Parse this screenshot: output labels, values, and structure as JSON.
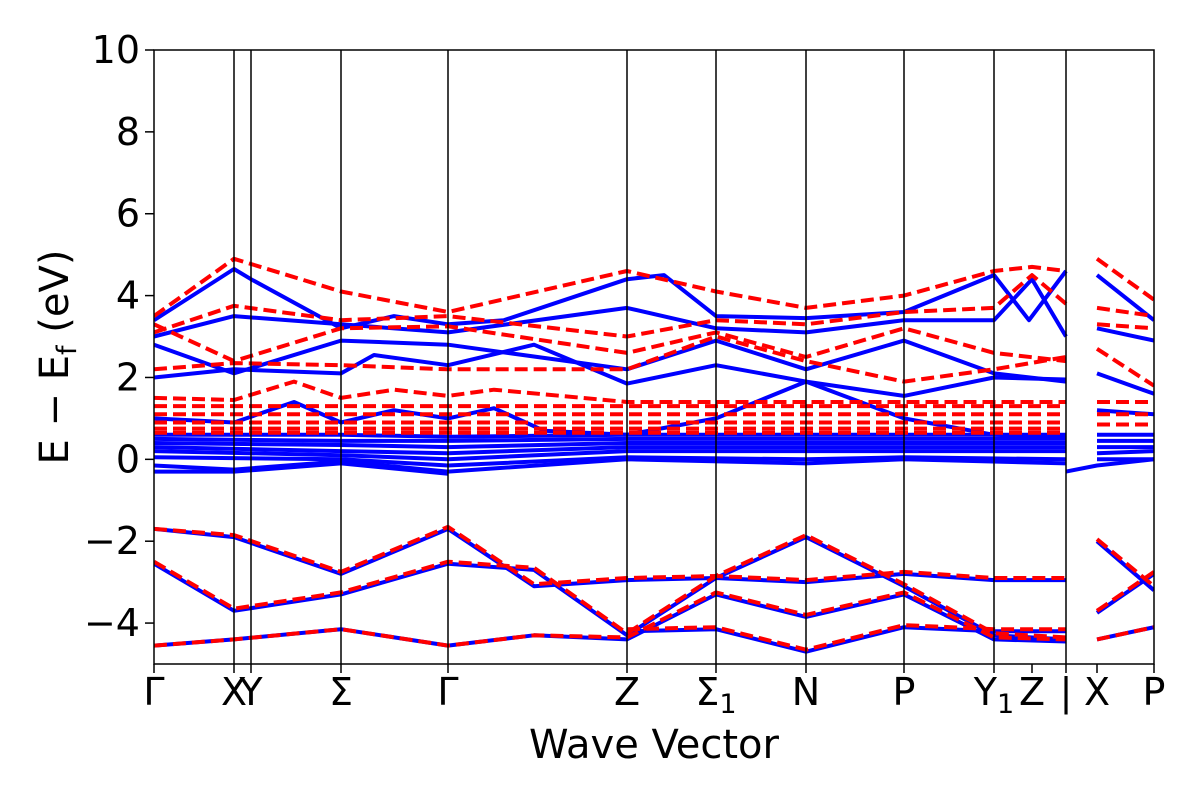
{
  "chart_data": {
    "type": "line",
    "title": "",
    "xlabel": "Wave Vector",
    "ylabel": "E − E_f (eV)",
    "ylabel_main": "E − E",
    "ylabel_sub": "f",
    "ylabel_unit": " (eV)",
    "ylim": [
      -5,
      10
    ],
    "yticks": [
      -4,
      -2,
      0,
      2,
      4,
      6,
      8,
      10
    ],
    "ytick_labels": [
      "−4",
      "−2",
      "0",
      "2",
      "4",
      "6",
      "8",
      "10"
    ],
    "xlim": [
      0,
      10
    ],
    "grid": false,
    "legend": "none",
    "colors": {
      "up": "#0000ff",
      "down": "#ff0000",
      "axis": "#000000"
    },
    "kpoints": [
      {
        "x": 0.0,
        "label": "Γ",
        "sub": ""
      },
      {
        "x": 0.8,
        "label": "X",
        "sub": ""
      },
      {
        "x": 0.97,
        "label": "Y",
        "sub": ""
      },
      {
        "x": 1.87,
        "label": "Σ",
        "sub": ""
      },
      {
        "x": 2.94,
        "label": "Γ",
        "sub": ""
      },
      {
        "x": 4.73,
        "label": "Z",
        "sub": ""
      },
      {
        "x": 5.62,
        "label": "Σ",
        "sub": "1"
      },
      {
        "x": 6.52,
        "label": "N",
        "sub": ""
      },
      {
        "x": 7.5,
        "label": "P",
        "sub": ""
      },
      {
        "x": 8.4,
        "label": "Y",
        "sub": "1"
      },
      {
        "x": 8.78,
        "label": "Z",
        "sub": ""
      },
      {
        "x": 9.12,
        "label": "|",
        "sub": ""
      },
      {
        "x": 9.43,
        "label": "X",
        "sub": ""
      },
      {
        "x": 10.0,
        "label": "P",
        "sub": ""
      }
    ],
    "vlines": [
      0.8,
      0.97,
      1.87,
      2.94,
      4.73,
      5.62,
      6.52,
      7.5,
      8.4,
      9.12
    ],
    "series": [
      {
        "spin": "up",
        "style": "solid",
        "x": [
          0,
          0.8,
          0.97,
          1.87,
          2.4,
          2.94,
          3.5,
          4.73,
          5.1,
          5.62,
          6.52,
          7.5,
          8.4,
          8.75,
          9.12
        ],
        "y": [
          3.4,
          4.65,
          4.4,
          3.2,
          3.5,
          3.3,
          3.4,
          4.4,
          4.5,
          3.5,
          3.45,
          3.6,
          4.5,
          3.4,
          4.6
        ]
      },
      {
        "spin": "up",
        "style": "solid",
        "x": [
          0,
          0.8,
          1.87,
          2.94,
          4.73,
          5.62,
          6.52,
          7.5,
          8.4,
          8.78,
          9.12
        ],
        "y": [
          3.0,
          3.5,
          3.3,
          3.1,
          3.7,
          3.2,
          3.1,
          3.4,
          3.4,
          4.4,
          3.0
        ]
      },
      {
        "spin": "up",
        "style": "solid",
        "x": [
          9.43,
          10.0
        ],
        "y": [
          4.5,
          3.4
        ]
      },
      {
        "spin": "up",
        "style": "solid",
        "x": [
          0,
          0.8,
          1.87,
          2.94,
          4.73,
          5.62,
          6.52,
          7.5,
          8.4,
          9.12
        ],
        "y": [
          2.8,
          2.1,
          2.9,
          2.8,
          2.2,
          2.9,
          2.2,
          2.9,
          2.1,
          1.9
        ]
      },
      {
        "spin": "up",
        "style": "solid",
        "x": [
          9.43,
          10.0
        ],
        "y": [
          3.2,
          2.9
        ]
      },
      {
        "spin": "up",
        "style": "solid",
        "x": [
          0,
          0.8,
          1.87,
          2.2,
          2.94,
          3.8,
          4.73,
          5.62,
          6.52,
          7.5,
          8.4,
          9.12
        ],
        "y": [
          2.0,
          2.2,
          2.1,
          2.55,
          2.3,
          2.8,
          1.85,
          2.3,
          1.9,
          1.55,
          2.0,
          1.95
        ]
      },
      {
        "spin": "up",
        "style": "solid",
        "x": [
          9.43,
          10.0
        ],
        "y": [
          2.1,
          1.6
        ]
      },
      {
        "spin": "up",
        "style": "solid",
        "x": [
          0,
          0.8,
          1.4,
          1.87,
          2.4,
          2.94,
          3.4,
          3.9,
          4.73,
          5.62,
          6.52,
          7.5,
          8.4,
          9.12
        ],
        "y": [
          1.0,
          0.9,
          1.4,
          0.9,
          1.2,
          1.0,
          1.25,
          0.7,
          0.6,
          1.0,
          1.9,
          1.0,
          0.6,
          0.55
        ]
      },
      {
        "spin": "up",
        "style": "solid",
        "x": [
          9.43,
          10.0
        ],
        "y": [
          1.2,
          1.1
        ]
      },
      {
        "spin": "up",
        "style": "solid",
        "x": [
          0,
          1.87,
          2.94,
          4.73,
          6.52,
          7.5,
          9.12
        ],
        "y": [
          0.6,
          0.6,
          0.55,
          0.6,
          0.6,
          0.6,
          0.6
        ]
      },
      {
        "spin": "up",
        "style": "solid",
        "x": [
          0,
          1.87,
          2.94,
          4.73,
          6.52,
          7.5,
          9.12
        ],
        "y": [
          0.5,
          0.45,
          0.45,
          0.5,
          0.5,
          0.5,
          0.5
        ]
      },
      {
        "spin": "up",
        "style": "solid",
        "x": [
          0,
          1.87,
          2.94,
          4.73,
          6.52,
          7.5,
          9.12
        ],
        "y": [
          0.4,
          0.35,
          0.3,
          0.4,
          0.4,
          0.4,
          0.4
        ]
      },
      {
        "spin": "up",
        "style": "solid",
        "x": [
          0,
          1.87,
          2.94,
          4.73,
          6.52,
          7.5,
          9.12
        ],
        "y": [
          0.3,
          0.2,
          0.15,
          0.3,
          0.3,
          0.3,
          0.3
        ]
      },
      {
        "spin": "up",
        "style": "solid",
        "x": [
          0,
          1.87,
          2.94,
          4.73,
          6.52,
          7.5,
          9.12
        ],
        "y": [
          0.2,
          0.1,
          0.0,
          0.2,
          0.2,
          0.2,
          0.2
        ]
      },
      {
        "spin": "up",
        "style": "solid",
        "x": [
          0,
          1.87,
          2.94,
          4.73,
          6.52,
          7.5,
          9.12
        ],
        "y": [
          0.05,
          0.0,
          -0.15,
          0.05,
          0.0,
          0.05,
          0.0
        ]
      },
      {
        "spin": "up",
        "style": "solid",
        "x": [
          0,
          0.8,
          1.87,
          2.94,
          4.73,
          6.52,
          7.5,
          9.12
        ],
        "y": [
          -0.15,
          -0.25,
          -0.05,
          -0.3,
          0.0,
          -0.1,
          0.0,
          -0.1
        ]
      },
      {
        "spin": "up",
        "style": "solid",
        "x": [
          0,
          0.8,
          1.87,
          2.94
        ],
        "y": [
          -0.3,
          -0.3,
          -0.1,
          -0.35
        ]
      },
      {
        "spin": "up",
        "style": "solid",
        "x": [
          9.43,
          10.0
        ],
        "y": [
          0.6,
          0.6
        ]
      },
      {
        "spin": "up",
        "style": "solid",
        "x": [
          9.43,
          10.0
        ],
        "y": [
          0.45,
          0.45
        ]
      },
      {
        "spin": "up",
        "style": "solid",
        "x": [
          9.43,
          10.0
        ],
        "y": [
          0.3,
          0.3
        ]
      },
      {
        "spin": "up",
        "style": "solid",
        "x": [
          9.43,
          10.0
        ],
        "y": [
          0.15,
          0.2
        ]
      },
      {
        "spin": "up",
        "style": "solid",
        "x": [
          9.43,
          10.0
        ],
        "y": [
          0.0,
          0.0
        ]
      },
      {
        "spin": "up",
        "style": "solid",
        "x": [
          9.12,
          9.43,
          10.0
        ],
        "y": [
          -0.3,
          -0.15,
          0.0
        ]
      },
      {
        "spin": "up",
        "style": "solid",
        "x": [
          0,
          0.8,
          1.87,
          2.94,
          3.8,
          4.73,
          5.62,
          6.52,
          7.5,
          8.4,
          9.12
        ],
        "y": [
          -1.7,
          -1.9,
          -2.8,
          -1.7,
          -3.1,
          -2.95,
          -2.9,
          -3.0,
          -2.8,
          -2.95,
          -2.95
        ]
      },
      {
        "spin": "up",
        "style": "solid",
        "x": [
          0,
          0.8,
          1.87,
          2.94,
          3.8,
          4.73,
          5.62,
          6.52,
          7.5,
          8.4,
          9.12
        ],
        "y": [
          -2.55,
          -3.7,
          -3.3,
          -2.55,
          -2.7,
          -4.3,
          -2.9,
          -1.9,
          -3.1,
          -4.3,
          -4.4
        ]
      },
      {
        "spin": "up",
        "style": "solid",
        "x": [
          0,
          0.8,
          1.87,
          2.94,
          3.8,
          4.73,
          5.62,
          6.52,
          7.5,
          8.4,
          9.12
        ],
        "y": [
          -4.55,
          -4.4,
          -4.15,
          -4.55,
          -4.3,
          -4.4,
          -3.3,
          -3.85,
          -3.3,
          -4.4,
          -4.45
        ]
      },
      {
        "spin": "up",
        "style": "solid",
        "x": [
          4.73,
          5.62,
          6.52,
          7.5,
          8.4,
          9.12
        ],
        "y": [
          -4.2,
          -4.15,
          -4.7,
          -4.1,
          -4.2,
          -4.2
        ]
      },
      {
        "spin": "up",
        "style": "solid",
        "x": [
          9.43,
          10.0
        ],
        "y": [
          -2.0,
          -3.2
        ]
      },
      {
        "spin": "up",
        "style": "solid",
        "x": [
          9.43,
          10.0
        ],
        "y": [
          -3.75,
          -2.8
        ]
      },
      {
        "spin": "up",
        "style": "solid",
        "x": [
          9.43,
          10.0
        ],
        "y": [
          -4.4,
          -4.1
        ]
      },
      {
        "spin": "down",
        "style": "dashed",
        "x": [
          0,
          0.8,
          1.87,
          2.94,
          4.73,
          5.62,
          6.52,
          7.5,
          8.4,
          8.78,
          9.12
        ],
        "y": [
          3.5,
          4.9,
          4.1,
          3.6,
          4.6,
          4.1,
          3.7,
          4.0,
          4.6,
          4.7,
          4.6
        ]
      },
      {
        "spin": "down",
        "style": "dashed",
        "x": [
          9.43,
          10.0
        ],
        "y": [
          4.9,
          3.9
        ]
      },
      {
        "spin": "down",
        "style": "dashed",
        "x": [
          0,
          0.8,
          1.87,
          2.94,
          4.73,
          5.62,
          6.52,
          7.5,
          8.4,
          8.78,
          9.12
        ],
        "y": [
          3.1,
          3.75,
          3.4,
          3.5,
          3.0,
          3.4,
          3.3,
          3.6,
          3.7,
          4.5,
          3.8
        ]
      },
      {
        "spin": "down",
        "style": "dashed",
        "x": [
          9.43,
          10.0
        ],
        "y": [
          3.7,
          3.5
        ]
      },
      {
        "spin": "down",
        "style": "dashed",
        "x": [
          0,
          0.8,
          1.87,
          2.94,
          4.73,
          5.62,
          6.52,
          7.5,
          8.4,
          9.12
        ],
        "y": [
          3.3,
          2.4,
          3.2,
          3.25,
          2.6,
          3.1,
          2.5,
          3.2,
          2.6,
          2.4
        ]
      },
      {
        "spin": "down",
        "style": "dashed",
        "x": [
          9.43,
          10.0
        ],
        "y": [
          3.3,
          3.2
        ]
      },
      {
        "spin": "down",
        "style": "dashed",
        "x": [
          0,
          0.8,
          1.87,
          2.94,
          4.73,
          5.62,
          6.52,
          7.5,
          8.4,
          9.12
        ],
        "y": [
          2.2,
          2.35,
          2.3,
          2.2,
          2.2,
          3.0,
          2.4,
          1.9,
          2.2,
          2.5
        ]
      },
      {
        "spin": "down",
        "style": "dashed",
        "x": [
          9.43,
          10.0
        ],
        "y": [
          2.7,
          1.8
        ]
      },
      {
        "spin": "down",
        "style": "dashed",
        "x": [
          0,
          0.8,
          1.4,
          1.87,
          2.4,
          2.94,
          3.4,
          4.73,
          9.12
        ],
        "y": [
          1.5,
          1.45,
          1.9,
          1.5,
          1.7,
          1.55,
          1.7,
          1.4,
          1.4
        ]
      },
      {
        "spin": "down",
        "style": "dashed",
        "x": [
          0,
          0.8,
          1.87,
          2.94,
          4.73,
          6.52,
          7.5,
          9.12
        ],
        "y": [
          1.3,
          1.3,
          1.3,
          1.3,
          1.3,
          1.3,
          1.3,
          1.3
        ]
      },
      {
        "spin": "down",
        "style": "dashed",
        "x": [
          0,
          0.8,
          1.87,
          2.94,
          4.73,
          6.52,
          7.5,
          9.12
        ],
        "y": [
          1.1,
          1.1,
          1.1,
          1.1,
          1.1,
          1.1,
          1.1,
          1.1
        ]
      },
      {
        "spin": "down",
        "style": "dashed",
        "x": [
          0,
          0.8,
          1.87,
          2.94,
          4.73,
          6.52,
          7.5,
          9.12
        ],
        "y": [
          0.9,
          0.9,
          0.9,
          0.9,
          0.9,
          0.9,
          0.9,
          0.9
        ]
      },
      {
        "spin": "down",
        "style": "dashed",
        "x": [
          0,
          0.8,
          1.87,
          2.94,
          4.73,
          6.52,
          7.5,
          9.12
        ],
        "y": [
          0.75,
          0.75,
          0.75,
          0.75,
          0.75,
          0.75,
          0.75,
          0.75
        ]
      },
      {
        "spin": "down",
        "style": "dashed",
        "x": [
          0,
          2.94,
          4.73,
          9.12
        ],
        "y": [
          0.65,
          0.65,
          0.65,
          0.65
        ]
      },
      {
        "spin": "down",
        "style": "dashed",
        "x": [
          9.43,
          10.0
        ],
        "y": [
          1.4,
          1.4
        ]
      },
      {
        "spin": "down",
        "style": "dashed",
        "x": [
          9.43,
          10.0
        ],
        "y": [
          1.1,
          1.1
        ]
      },
      {
        "spin": "down",
        "style": "dashed",
        "x": [
          9.43,
          10.0
        ],
        "y": [
          0.85,
          0.85
        ]
      },
      {
        "spin": "down",
        "style": "dashed",
        "x": [
          0,
          0.8,
          1.87,
          2.94,
          3.8,
          4.73,
          5.62,
          6.52,
          7.5,
          8.4,
          9.12
        ],
        "y": [
          -1.7,
          -1.85,
          -2.75,
          -1.65,
          -3.05,
          -2.9,
          -2.85,
          -2.95,
          -2.75,
          -2.9,
          -2.9
        ]
      },
      {
        "spin": "down",
        "style": "dashed",
        "x": [
          0,
          0.8,
          1.87,
          2.94,
          3.8,
          4.73,
          5.62,
          6.52,
          7.5,
          8.4,
          9.12
        ],
        "y": [
          -2.5,
          -3.65,
          -3.25,
          -2.5,
          -2.65,
          -4.25,
          -2.85,
          -1.85,
          -3.05,
          -4.25,
          -4.35
        ]
      },
      {
        "spin": "down",
        "style": "dashed",
        "x": [
          0,
          0.8,
          1.87,
          2.94,
          3.8,
          4.73,
          5.62,
          6.52,
          7.5,
          8.4,
          9.12
        ],
        "y": [
          -4.55,
          -4.4,
          -4.15,
          -4.55,
          -4.3,
          -4.35,
          -3.25,
          -3.8,
          -3.25,
          -4.35,
          -4.4
        ]
      },
      {
        "spin": "down",
        "style": "dashed",
        "x": [
          4.73,
          5.62,
          6.52,
          7.5,
          8.4,
          9.12
        ],
        "y": [
          -4.15,
          -4.1,
          -4.65,
          -4.05,
          -4.15,
          -4.15
        ]
      },
      {
        "spin": "down",
        "style": "dashed",
        "x": [
          9.43,
          10.0
        ],
        "y": [
          -1.95,
          -3.1
        ]
      },
      {
        "spin": "down",
        "style": "dashed",
        "x": [
          9.43,
          10.0
        ],
        "y": [
          -3.7,
          -2.75
        ]
      },
      {
        "spin": "down",
        "style": "dashed",
        "x": [
          9.43,
          10.0
        ],
        "y": [
          -4.4,
          -4.1
        ]
      }
    ]
  }
}
